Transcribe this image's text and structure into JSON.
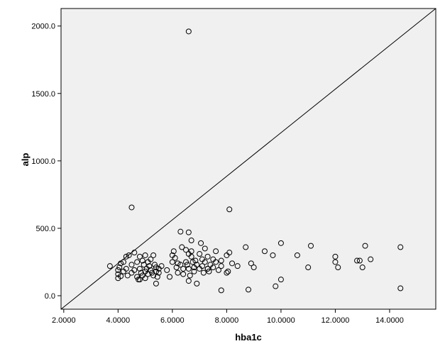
{
  "chart_data": {
    "type": "scatter",
    "xlabel": "hba1c",
    "ylabel": "alp",
    "xlim": [
      1.9,
      15.7
    ],
    "ylim": [
      -100,
      2130
    ],
    "x_ticks": [
      2,
      4,
      6,
      8,
      10,
      12,
      14
    ],
    "x_tick_labels": [
      "2.0000",
      "4.0000",
      "6.0000",
      "8.0000",
      "10.0000",
      "12.0000",
      "14.0000"
    ],
    "y_ticks": [
      0,
      500,
      1000,
      1500,
      2000
    ],
    "y_tick_labels": [
      "0.0",
      "500.0",
      "1000.0",
      "1500.0",
      "2000.0"
    ],
    "reference_line": {
      "from": [
        1.9,
        -100
      ],
      "to": [
        15.7,
        2130
      ]
    },
    "grid": false,
    "plot_background": "#f0f0f0",
    "marker_color": "#000000",
    "series": [
      {
        "x": [
          6.6,
          4.5,
          8.1,
          6.3,
          6.6,
          6.7,
          3.7,
          4.0,
          4.0,
          4.0,
          4.05,
          4.1,
          4.1,
          4.2,
          4.2,
          4.3,
          4.3,
          4.35,
          4.4,
          4.5,
          4.5,
          4.6,
          4.6,
          4.7,
          4.7,
          4.75,
          4.8,
          4.8,
          4.85,
          4.9,
          4.9,
          4.95,
          5.0,
          5.0,
          5.05,
          5.1,
          5.1,
          5.15,
          5.2,
          5.2,
          5.25,
          5.3,
          5.3,
          5.35,
          5.4,
          5.4,
          5.45,
          5.5,
          5.5,
          5.6,
          5.8,
          5.9,
          6.0,
          6.0,
          6.05,
          6.1,
          6.15,
          6.2,
          6.3,
          6.35,
          6.4,
          6.4,
          6.5,
          6.5,
          6.55,
          6.6,
          6.6,
          6.65,
          6.7,
          6.7,
          6.75,
          6.8,
          6.8,
          6.85,
          6.9,
          7.0,
          7.0,
          7.05,
          7.1,
          7.1,
          7.15,
          7.2,
          7.2,
          7.3,
          7.3,
          7.35,
          7.4,
          7.5,
          7.5,
          7.6,
          7.6,
          7.7,
          7.8,
          7.8,
          8.0,
          8.0,
          8.05,
          8.1,
          8.2,
          8.4,
          8.7,
          8.9,
          9.0,
          9.4,
          9.7,
          10.0,
          10.6,
          11.0,
          11.1,
          12.0,
          12.0,
          12.1,
          12.8,
          12.9,
          13.0,
          13.1,
          13.3,
          14.4,
          7.8,
          8.8,
          9.8,
          10.0,
          14.4,
          5.4,
          6.6,
          6.9,
          5.0,
          4.8,
          7.3,
          6.2
        ],
        "y": [
          1960,
          655,
          640,
          475,
          470,
          410,
          220,
          130,
          160,
          190,
          210,
          145,
          240,
          180,
          250,
          200,
          290,
          150,
          300,
          170,
          230,
          320,
          190,
          140,
          250,
          120,
          200,
          290,
          170,
          150,
          260,
          230,
          180,
          300,
          200,
          160,
          250,
          220,
          190,
          270,
          170,
          150,
          300,
          230,
          210,
          180,
          140,
          200,
          170,
          220,
          190,
          140,
          300,
          250,
          330,
          280,
          210,
          240,
          230,
          360,
          200,
          160,
          340,
          250,
          230,
          310,
          200,
          150,
          330,
          290,
          250,
          210,
          180,
          260,
          230,
          310,
          200,
          390,
          270,
          220,
          170,
          350,
          250,
          200,
          290,
          180,
          230,
          270,
          210,
          330,
          250,
          190,
          260,
          220,
          300,
          170,
          180,
          320,
          240,
          220,
          360,
          240,
          210,
          330,
          300,
          390,
          300,
          210,
          370,
          290,
          250,
          210,
          260,
          260,
          210,
          370,
          270,
          360,
          40,
          45,
          70,
          120,
          55,
          90,
          110,
          90,
          130,
          120,
          200,
          170
        ]
      }
    ]
  }
}
